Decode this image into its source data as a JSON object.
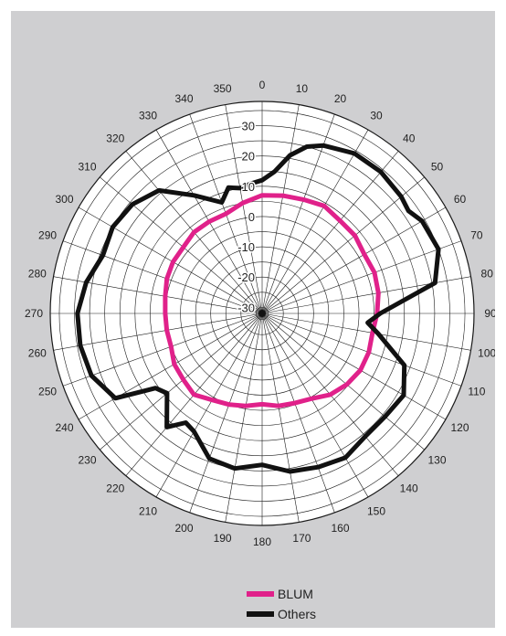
{
  "chart_data": {
    "type": "polar-line",
    "angle_unit": "degrees",
    "angle_direction": "clockwise",
    "angle_zero": "top",
    "angle_ticks": [
      0,
      10,
      20,
      30,
      40,
      50,
      60,
      70,
      80,
      90,
      100,
      110,
      120,
      130,
      140,
      150,
      160,
      170,
      180,
      190,
      200,
      210,
      220,
      230,
      240,
      250,
      260,
      270,
      280,
      290,
      300,
      310,
      320,
      330,
      340,
      350
    ],
    "radial_ticks": [
      30,
      20,
      10,
      0,
      -10,
      -20,
      -30
    ],
    "rlim": [
      -32,
      38
    ],
    "series": [
      {
        "name": "BLUM",
        "color": "#e0218a",
        "angles": [
          0,
          10,
          20,
          30,
          40,
          50,
          60,
          70,
          80,
          90,
          100,
          110,
          120,
          130,
          140,
          150,
          160,
          170,
          180,
          190,
          200,
          210,
          220,
          230,
          240,
          250,
          260,
          270,
          280,
          290,
          300,
          310,
          320,
          330,
          340,
          350
        ],
        "values": [
          7,
          7.5,
          8,
          9,
          8,
          8,
          7,
          7.5,
          7,
          6,
          5,
          5.5,
          5.5,
          4.5,
          3,
          0.5,
          -0.5,
          -1,
          -2,
          -1,
          0,
          1,
          3,
          2,
          1.5,
          0,
          0,
          0,
          0.5,
          1.5,
          2,
          2,
          3,
          3,
          3,
          5
        ]
      },
      {
        "name": "Others",
        "color": "#111111",
        "angles": [
          0,
          5,
          10,
          15,
          20,
          30,
          40,
          50,
          55,
          60,
          70,
          80,
          90,
          95,
          100,
          110,
          120,
          130,
          140,
          150,
          160,
          170,
          180,
          190,
          200,
          210,
          215,
          220,
          230,
          235,
          240,
          250,
          260,
          270,
          280,
          290,
          300,
          310,
          320,
          330,
          340,
          345,
          350,
          355
        ],
        "values": [
          12,
          15,
          21,
          25,
          27,
          29,
          29,
          28,
          27,
          29,
          30,
          26,
          7,
          3,
          7,
          18,
          22,
          21,
          21,
          23,
          22,
          21,
          18,
          20,
          19,
          13,
          12,
          17,
          9,
          11,
          24,
          28,
          29,
          29,
          27,
          24,
          25,
          24,
          21,
          13,
          7,
          11,
          10,
          11
        ]
      }
    ],
    "legend": {
      "position": "bottom",
      "entries": [
        "BLUM",
        "Others"
      ]
    }
  },
  "colors": {
    "panel_background": "#cfcfd1",
    "plot_background": "#ffffff",
    "grid": "#1a1a1a"
  }
}
